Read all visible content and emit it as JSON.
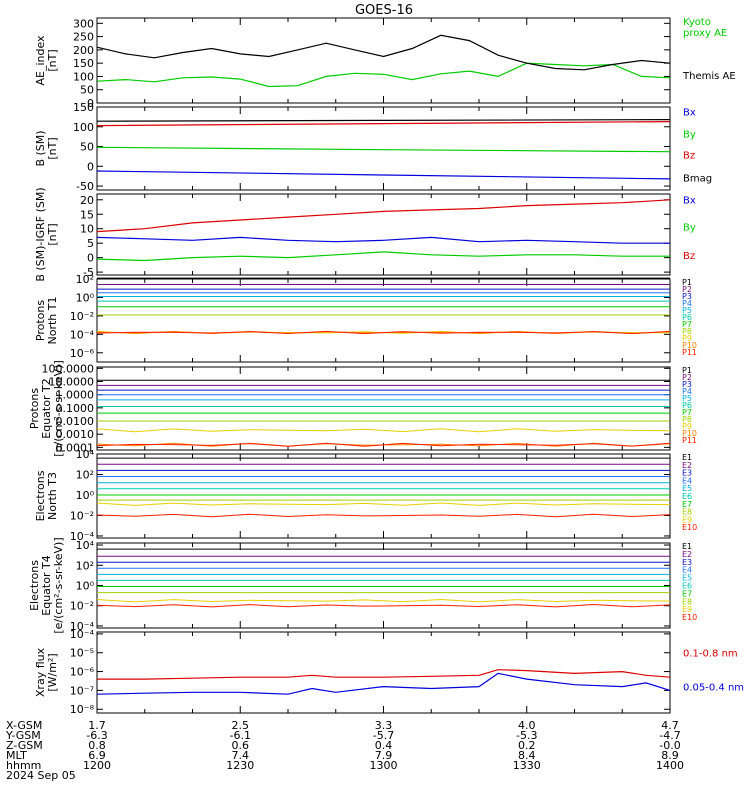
{
  "title": "GOES-16",
  "colors": {
    "black": "#000000",
    "red": "#dd0000",
    "green": "#00cc00",
    "blue": "#0000dd",
    "ch": [
      "#000000",
      "#7a0d86",
      "#1010c8",
      "#2070ff",
      "#00b0e0",
      "#00c8b0",
      "#00cc00",
      "#a0d000",
      "#e8d000",
      "#ff8000",
      "#ff2000",
      "#cc0000"
    ]
  },
  "time_axis": {
    "start": "12:00",
    "end": "14:00",
    "tick_times": [
      "12:00",
      "12:30",
      "13:00",
      "13:30",
      "14:00"
    ]
  },
  "chart_data": [
    {
      "id": "ae",
      "type": "line",
      "ylabel": "AE_index\n[nT]",
      "ylim": [
        0,
        320
      ],
      "yticks": [
        "0",
        "50",
        "100",
        "150",
        "200",
        "250",
        "300"
      ],
      "ytick_values": [
        0,
        50,
        100,
        150,
        200,
        250,
        300
      ],
      "x_minutes": [
        0,
        6,
        12,
        18,
        24,
        30,
        36,
        42,
        48,
        54,
        60,
        66,
        72,
        78,
        84,
        90,
        96,
        102,
        108,
        114,
        120
      ],
      "series": [
        {
          "name": "Kyoto\nproxy AE",
          "color": "green",
          "legend_y": 0.08,
          "values": [
            82,
            88,
            80,
            95,
            98,
            90,
            62,
            65,
            100,
            112,
            108,
            88,
            110,
            120,
            100,
            150,
            145,
            140,
            145,
            100,
            95
          ]
        },
        {
          "name": "Themis AE",
          "color": "black",
          "legend_y": 0.72,
          "values": [
            210,
            185,
            170,
            190,
            205,
            185,
            175,
            200,
            225,
            200,
            175,
            205,
            255,
            235,
            180,
            150,
            130,
            125,
            145,
            160,
            150
          ]
        }
      ]
    },
    {
      "id": "bsm",
      "type": "line",
      "ylabel": "B (SM)\n[nT]",
      "ylim": [
        -60,
        150
      ],
      "yticks": [
        "-50",
        "0",
        "50",
        "100",
        "150"
      ],
      "ytick_values": [
        -50,
        0,
        50,
        100,
        150
      ],
      "x_minutes": [
        0,
        60,
        120
      ],
      "series": [
        {
          "name": "Bx",
          "color": "blue",
          "legend_y": 0.1,
          "values": [
            -12,
            -22,
            -32
          ]
        },
        {
          "name": "By",
          "color": "green",
          "legend_y": 0.37,
          "values": [
            48,
            42,
            37
          ]
        },
        {
          "name": "Bz",
          "color": "red",
          "legend_y": 0.62,
          "values": [
            103,
            108,
            113
          ]
        },
        {
          "name": "Bmag",
          "color": "black",
          "legend_y": 0.9,
          "values": [
            114,
            116,
            118
          ]
        }
      ]
    },
    {
      "id": "bigrf",
      "type": "line",
      "ylabel": "B (SM)-IGRF (SM)\n[nT]",
      "ylim": [
        -6,
        22
      ],
      "yticks": [
        "-5",
        "0",
        "5",
        "10",
        "15",
        "20"
      ],
      "ytick_values": [
        -5,
        0,
        5,
        10,
        15,
        20
      ],
      "x_minutes": [
        0,
        10,
        20,
        30,
        40,
        50,
        60,
        70,
        80,
        90,
        100,
        110,
        120
      ],
      "series": [
        {
          "name": "Bx",
          "color": "blue",
          "legend_y": 0.12,
          "values": [
            7,
            6.5,
            6,
            7,
            6,
            5.5,
            6,
            7,
            5.5,
            6,
            5.5,
            5,
            5
          ]
        },
        {
          "name": "By",
          "color": "green",
          "legend_y": 0.45,
          "values": [
            -0.5,
            -1,
            0,
            0.5,
            0,
            1,
            2,
            1,
            0.5,
            1,
            1,
            0.5,
            0.5
          ]
        },
        {
          "name": "Bz",
          "color": "red",
          "legend_y": 0.8,
          "values": [
            9,
            10,
            12,
            13,
            14,
            15,
            16,
            16.5,
            17,
            18,
            18.5,
            19,
            20
          ]
        }
      ]
    },
    {
      "id": "pnorth",
      "type": "line",
      "yscale": "log",
      "ylabel": "Protons\nNorth T1",
      "ylim_exp": [
        -7,
        2
      ],
      "yticks": [
        "10⁻⁶",
        "10⁻⁴",
        "10⁻²",
        "10⁰",
        "10²"
      ],
      "ytick_exps": [
        -6,
        -4,
        -2,
        0,
        2
      ],
      "channels": [
        "P1",
        "P2",
        "P3",
        "P4",
        "P5",
        "P6",
        "P7",
        "P8",
        "P9",
        "P10",
        "P11"
      ],
      "levels_exp": [
        2.1,
        1.4,
        0.9,
        0.5,
        0.1,
        -0.4,
        -1.0,
        -1.9,
        -3.8,
        -3.8,
        -3.8
      ],
      "legend_colors": [
        "black",
        "ch1",
        "ch2",
        "ch3",
        "ch4",
        "ch5",
        "ch6",
        "ch7",
        "ch8",
        "ch9",
        "ch10"
      ]
    },
    {
      "id": "pequator",
      "type": "line",
      "yscale": "log",
      "ylabel": "Protons\nEquator T2\n[p/(cm²-s-sr-keV)]",
      "ylim_exp": [
        -4.2,
        2.1
      ],
      "yticks": [
        "0.0001",
        "0.0010",
        "0.0100",
        "0.1000",
        "1.0000",
        "10.0000",
        "100.0000"
      ],
      "ytick_exps": [
        -4,
        -3,
        -2,
        -1,
        0,
        1,
        2
      ],
      "channels": [
        "P1",
        "P2",
        "P3",
        "P4",
        "P5",
        "P6",
        "P7",
        "P8",
        "P9",
        "P10",
        "P11"
      ],
      "levels_exp": [
        1.1,
        0.7,
        0.35,
        0.0,
        -0.4,
        -0.9,
        -1.4,
        -2.0,
        -2.7,
        -3.8,
        -3.8
      ],
      "legend_colors": [
        "black",
        "ch1",
        "ch2",
        "ch3",
        "ch4",
        "ch5",
        "ch6",
        "ch7",
        "ch8",
        "ch9",
        "ch10"
      ]
    },
    {
      "id": "enorth",
      "type": "line",
      "yscale": "log",
      "ylabel": "Electrons\nNorth T3",
      "ylim_exp": [
        -4.2,
        4
      ],
      "yticks": [
        "10⁻⁴",
        "10⁻²",
        "10⁰",
        "10²",
        "10⁴"
      ],
      "ytick_exps": [
        -4,
        -2,
        0,
        2,
        4
      ],
      "channels": [
        "E1",
        "E2",
        "E3",
        "E4",
        "E5",
        "E6",
        "E7",
        "E8",
        "E9",
        "E10"
      ],
      "levels_exp": [
        3.6,
        3.0,
        2.4,
        1.8,
        1.2,
        0.6,
        0.0,
        -0.5,
        -0.9,
        -2.0
      ],
      "legend_colors": [
        "black",
        "ch1",
        "ch2",
        "ch3",
        "ch4",
        "ch5",
        "ch6",
        "ch7",
        "ch8",
        "ch10"
      ]
    },
    {
      "id": "eequator",
      "type": "line",
      "yscale": "log",
      "ylabel": "Electrons\nEquator T4\n[e/(cm²-s-sr-keV)]",
      "ylim_exp": [
        -4.2,
        4.2
      ],
      "yticks": [
        "10⁻⁴",
        "10⁻²",
        "10⁰",
        "10²",
        "10⁴"
      ],
      "ytick_exps": [
        -4,
        -2,
        0,
        2,
        4
      ],
      "channels": [
        "E1",
        "E2",
        "E3",
        "E4",
        "E5",
        "E6",
        "E7",
        "E8",
        "E9",
        "E10"
      ],
      "levels_exp": [
        3.6,
        2.9,
        2.3,
        1.7,
        1.1,
        0.5,
        -0.1,
        -0.7,
        -1.5,
        -2.0
      ],
      "legend_colors": [
        "black",
        "ch1",
        "ch2",
        "ch3",
        "ch4",
        "ch5",
        "ch6",
        "ch7",
        "ch8",
        "ch10"
      ]
    },
    {
      "id": "xray",
      "type": "line",
      "yscale": "log",
      "ylabel": "Xray flux\n[W/m²]",
      "ylim_exp": [
        -8.2,
        -3.9
      ],
      "yticks": [
        "10⁻⁸",
        "10⁻⁷",
        "10⁻⁶",
        "10⁻⁵",
        "10⁻⁴"
      ],
      "ytick_exps": [
        -8,
        -7,
        -6,
        -5,
        -4
      ],
      "x_minutes": [
        0,
        10,
        20,
        30,
        40,
        45,
        50,
        60,
        70,
        80,
        84,
        90,
        100,
        110,
        115,
        120
      ],
      "series": [
        {
          "name": "0.1-0.8 nm",
          "color": "red",
          "legend_y": 0.3,
          "values_exp": [
            -6.4,
            -6.4,
            -6.35,
            -6.3,
            -6.3,
            -6.2,
            -6.3,
            -6.3,
            -6.25,
            -6.2,
            -5.9,
            -5.95,
            -6.1,
            -6.0,
            -6.2,
            -6.3
          ]
        },
        {
          "name": "0.05-0.4 nm",
          "color": "blue",
          "legend_y": 0.72,
          "values_exp": [
            -7.2,
            -7.15,
            -7.1,
            -7.1,
            -7.2,
            -6.9,
            -7.1,
            -6.8,
            -6.9,
            -6.8,
            -6.1,
            -6.4,
            -6.7,
            -6.8,
            -6.6,
            -7.0
          ]
        }
      ]
    }
  ],
  "bottom_axis": {
    "rows": [
      {
        "label": "X-GSM",
        "values": [
          "1.7",
          "2.5",
          "3.3",
          "4.0",
          "4.7"
        ]
      },
      {
        "label": "Y-GSM",
        "values": [
          "-6.3",
          "-6.1",
          "-5.7",
          "-5.3",
          "-4.7"
        ]
      },
      {
        "label": "Z-GSM",
        "values": [
          "0.8",
          "0.6",
          "0.4",
          "0.2",
          "-0.0"
        ]
      },
      {
        "label": "MLT",
        "values": [
          "6.9",
          "7.4",
          "7.9",
          "8.4",
          "8.9"
        ]
      },
      {
        "label": "hhmm",
        "values": [
          "1200",
          "1230",
          "1300",
          "1330",
          "1400"
        ]
      }
    ],
    "date": "2024 Sep 05"
  }
}
